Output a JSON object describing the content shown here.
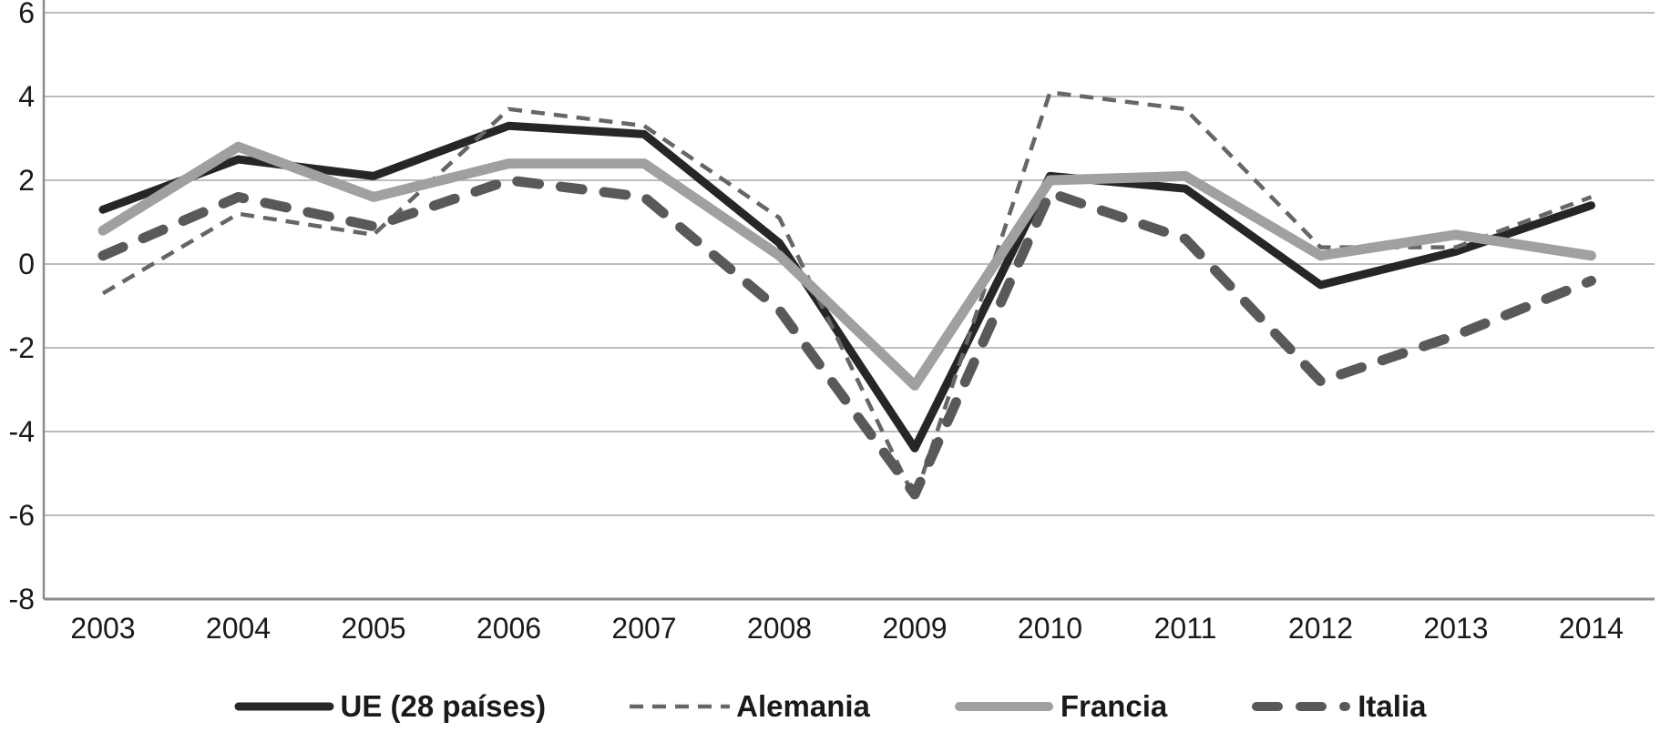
{
  "chart_data": {
    "type": "line",
    "title": "",
    "xlabel": "",
    "ylabel": "",
    "categories": [
      "2003",
      "2004",
      "2005",
      "2006",
      "2007",
      "2008",
      "2009",
      "2010",
      "2011",
      "2012",
      "2013",
      "2014"
    ],
    "series": [
      {
        "id": "ue-28-paises",
        "name": "UE (28 países)",
        "color": "#262626",
        "stroke_width": 9,
        "dash": "",
        "linecap": "round",
        "values": [
          1.3,
          2.5,
          2.1,
          3.3,
          3.1,
          0.5,
          -4.4,
          2.1,
          1.8,
          -0.5,
          0.3,
          1.4
        ]
      },
      {
        "id": "alemania",
        "name": "Alemania",
        "color": "#666666",
        "stroke_width": 4.5,
        "dash": "15 10",
        "linecap": "butt",
        "values": [
          -0.7,
          1.2,
          0.7,
          3.7,
          3.3,
          1.1,
          -5.6,
          4.1,
          3.7,
          0.4,
          0.4,
          1.6
        ]
      },
      {
        "id": "francia",
        "name": "Francia",
        "color": "#a0a0a0",
        "stroke_width": 11,
        "dash": "",
        "linecap": "round",
        "values": [
          0.8,
          2.8,
          1.6,
          2.4,
          2.4,
          0.2,
          -2.9,
          2.0,
          2.1,
          0.2,
          0.7,
          0.2
        ]
      },
      {
        "id": "italia",
        "name": "Italia",
        "color": "#595959",
        "stroke_width": 11,
        "dash": "24 24",
        "linecap": "round",
        "values": [
          0.2,
          1.6,
          0.9,
          2.0,
          1.6,
          -1.1,
          -5.5,
          1.7,
          0.6,
          -2.8,
          -1.7,
          -0.4
        ]
      }
    ],
    "ylim": [
      -8,
      6
    ],
    "yticks": [
      6,
      4,
      2,
      0,
      -2,
      -4,
      -6,
      -8
    ],
    "grid": true,
    "legend_position": "bottom",
    "gridline_color": "#a6a6a6",
    "axis_color": "#8c8c8c",
    "text_color": "#1a1a1a"
  }
}
